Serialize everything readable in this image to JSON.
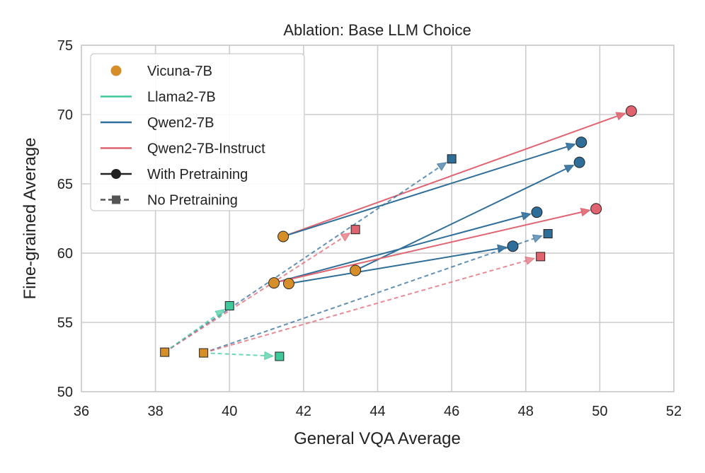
{
  "chart_data": {
    "type": "scatter",
    "title": "Ablation: Base LLM Choice",
    "xlabel": "General VQA Average",
    "ylabel": "Fine-grained Average",
    "xlim": [
      36,
      52
    ],
    "ylim": [
      50,
      75
    ],
    "xticks": [
      "36",
      "38",
      "40",
      "42",
      "44",
      "46",
      "48",
      "50",
      "52"
    ],
    "yticks": [
      "50",
      "55",
      "60",
      "65",
      "70",
      "75"
    ],
    "grid": true,
    "legend_position": "top-left",
    "legend": [
      {
        "label": "Vicuna-7B",
        "kind": "marker",
        "color": "#d68f28"
      },
      {
        "label": "Llama2-7B",
        "kind": "line",
        "color": "#3ec99c"
      },
      {
        "label": "Qwen2-7B",
        "kind": "line",
        "color": "#2f6e99"
      },
      {
        "label": "Qwen2-7B-Instruct",
        "kind": "line",
        "color": "#e06470"
      },
      {
        "label": "With Pretraining",
        "kind": "solid-circle",
        "color": "#222222"
      },
      {
        "label": "No Pretraining",
        "kind": "dashed-square",
        "color": "#555555"
      }
    ],
    "colors": {
      "vicuna": "#d68f28",
      "llama2": "#3ec99c",
      "qwen2": "#2f6e99",
      "qwen2_instruct": "#e06470"
    },
    "series": [
      {
        "name": "Vicuna-7B",
        "color_key": "vicuna",
        "marker": "circle",
        "points": [
          [
            41.45,
            61.2
          ],
          [
            41.2,
            57.85
          ],
          [
            41.6,
            57.8
          ],
          [
            43.4,
            58.75
          ]
        ]
      },
      {
        "name": "Vicuna-7B (No Pretraining)",
        "color_key": "vicuna",
        "marker": "square",
        "points": [
          [
            38.25,
            52.85
          ],
          [
            39.3,
            52.8
          ]
        ]
      },
      {
        "name": "Qwen2-7B",
        "color_key": "qwen2",
        "marker": "circle",
        "points": [
          [
            49.5,
            68.0
          ],
          [
            49.45,
            66.55
          ],
          [
            48.3,
            62.95
          ],
          [
            47.65,
            60.5
          ]
        ]
      },
      {
        "name": "Qwen2-7B-Instruct",
        "color_key": "qwen2_instruct",
        "marker": "circle",
        "points": [
          [
            50.85,
            70.25
          ],
          [
            49.9,
            63.2
          ]
        ]
      },
      {
        "name": "Qwen2-7B (No Pretraining)",
        "color_key": "qwen2",
        "marker": "square",
        "points": [
          [
            46.0,
            66.8
          ],
          [
            48.6,
            61.4
          ]
        ]
      },
      {
        "name": "Qwen2-7B-Instruct (No Pretraining)",
        "color_key": "qwen2_instruct",
        "marker": "square",
        "points": [
          [
            43.4,
            61.7
          ],
          [
            48.4,
            59.75
          ]
        ]
      },
      {
        "name": "Llama2-7B (No Pretraining)",
        "color_key": "llama2",
        "marker": "square",
        "points": [
          [
            40.0,
            56.2
          ],
          [
            41.35,
            52.55
          ]
        ]
      }
    ],
    "arrows": [
      {
        "from": [
          41.45,
          61.2
        ],
        "to": [
          50.85,
          70.25
        ],
        "color_key": "qwen2_instruct",
        "style": "solid"
      },
      {
        "from": [
          41.45,
          61.2
        ],
        "to": [
          49.5,
          68.0
        ],
        "color_key": "qwen2",
        "style": "solid"
      },
      {
        "from": [
          43.4,
          58.75
        ],
        "to": [
          49.45,
          66.55
        ],
        "color_key": "qwen2",
        "style": "solid"
      },
      {
        "from": [
          41.2,
          57.85
        ],
        "to": [
          48.3,
          62.95
        ],
        "color_key": "qwen2",
        "style": "solid"
      },
      {
        "from": [
          41.2,
          57.85
        ],
        "to": [
          49.9,
          63.2
        ],
        "color_key": "qwen2_instruct",
        "style": "solid"
      },
      {
        "from": [
          41.6,
          57.8
        ],
        "to": [
          47.65,
          60.5
        ],
        "color_key": "qwen2",
        "style": "solid"
      },
      {
        "from": [
          38.25,
          52.85
        ],
        "to": [
          46.0,
          66.8
        ],
        "color_key": "qwen2",
        "style": "dashed"
      },
      {
        "from": [
          38.25,
          52.85
        ],
        "to": [
          43.4,
          61.7
        ],
        "color_key": "qwen2_instruct",
        "style": "dashed"
      },
      {
        "from": [
          38.25,
          52.85
        ],
        "to": [
          40.0,
          56.2
        ],
        "color_key": "llama2",
        "style": "dashed"
      },
      {
        "from": [
          39.3,
          52.8
        ],
        "to": [
          48.6,
          61.4
        ],
        "color_key": "qwen2",
        "style": "dashed"
      },
      {
        "from": [
          39.3,
          52.8
        ],
        "to": [
          48.4,
          59.75
        ],
        "color_key": "qwen2_instruct",
        "style": "dashed"
      },
      {
        "from": [
          39.3,
          52.8
        ],
        "to": [
          41.35,
          52.55
        ],
        "color_key": "llama2",
        "style": "dashed"
      }
    ]
  }
}
